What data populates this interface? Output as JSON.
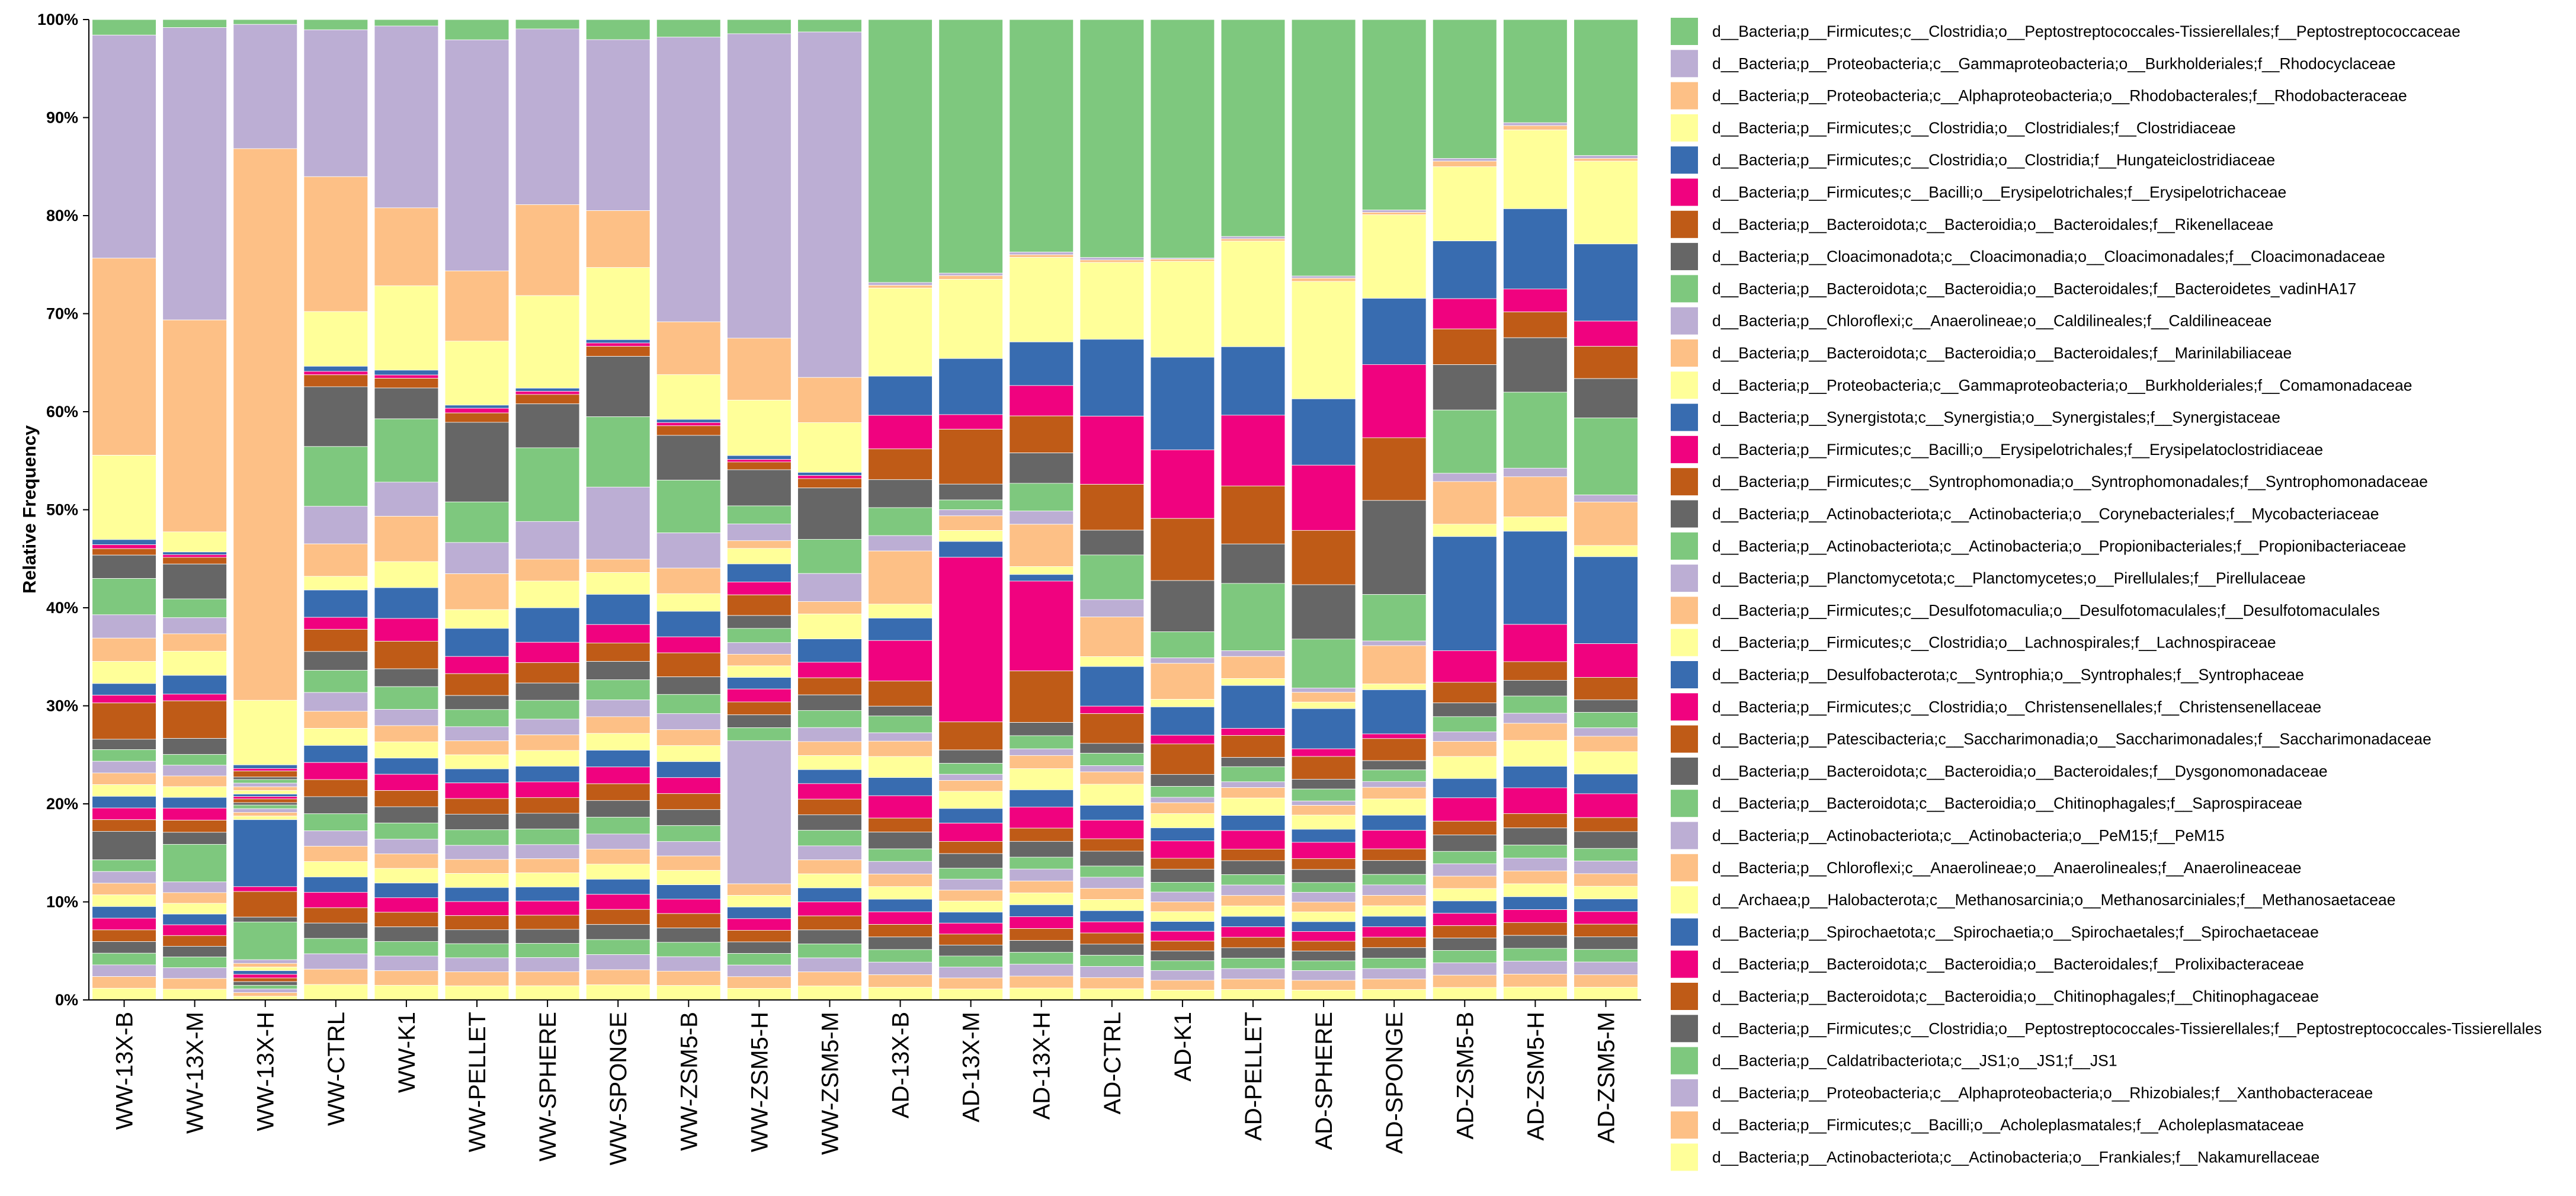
{
  "chart_data": {
    "type": "bar",
    "stacked": true,
    "normalized": true,
    "title": "",
    "xlabel": "",
    "ylabel": "Relative Frequency",
    "ylim": [
      0,
      100
    ],
    "yticks": [
      "0%",
      "10%",
      "20%",
      "30%",
      "40%",
      "50%",
      "60%",
      "70%",
      "80%",
      "90%",
      "100%"
    ],
    "legend_position": "right",
    "categories": [
      "WW-13X-B",
      "WW-13X-M",
      "WW-13X-H",
      "WW-CTRL",
      "WW-K1",
      "WW-PELLET",
      "WW-SPHERE",
      "WW-SPONGE",
      "WW-ZSM5-B",
      "WW-ZSM5-H",
      "WW-ZSM5-M",
      "AD-13X-B",
      "AD-13X-M",
      "AD-13X-H",
      "AD-CTRL",
      "AD-K1",
      "AD-PELLET",
      "AD-SPHERE",
      "AD-SPONGE",
      "AD-ZSM5-B",
      "AD-ZSM5-H",
      "AD-ZSM5-M"
    ],
    "series": [
      {
        "name": "d__Bacteria;p__Firmicutes;c__Clostridia;o__Peptostreptococcales-Tissierellales;f__Peptostreptococcaceae",
        "color": "#7ec87e",
        "values": [
          1.2,
          0.6,
          0.4,
          0.6,
          0.4,
          1.3,
          0.6,
          1.2,
          1.1,
          1.1,
          0.8,
          18.8,
          20.8,
          17.6,
          19.2,
          21.9,
          18.7,
          23.6,
          16.4,
          10.1,
          7.2,
          9.7
        ]
      },
      {
        "name": "d__Bacteria;p__Proteobacteria;c__Gammaproteobacteria;o__Burkholderiales;f__Rhodocyclaceae",
        "color": "#bcaed4",
        "values": [
          17.2,
          21.8,
          10.2,
          8.6,
          11.2,
          14.8,
          11.2,
          10.2,
          17.8,
          23.6,
          22.2,
          0.2,
          0.2,
          0.2,
          0.2,
          0.1,
          0.2,
          0.2,
          0.2,
          0.2,
          0.2,
          0.2
        ]
      },
      {
        "name": "d__Bacteria;p__Proteobacteria;c__Alphaproteobacteria;o__Rhodobacterales;f__Rhodobacteraceae",
        "color": "#fdc086",
        "values": [
          15.2,
          15.8,
          45.3,
          7.9,
          4.8,
          4.5,
          5.8,
          3.4,
          3.3,
          4.8,
          2.9,
          0.2,
          0.3,
          0.2,
          0.2,
          0.2,
          0.2,
          0.3,
          0.2,
          0.4,
          0.3,
          0.2
        ]
      },
      {
        "name": "d__Bacteria;p__Firmicutes;c__Clostridia;o__Clostridiales;f__Clostridiaceae",
        "color": "#ffff99",
        "values": [
          6.5,
          1.5,
          5.3,
          3.2,
          5.2,
          4.1,
          5.9,
          4.3,
          2.8,
          4.3,
          3.2,
          6.3,
          6.5,
          6.4,
          6.2,
          8.8,
          9.1,
          10.8,
          7.2,
          5.4,
          5.5,
          5.9
        ]
      },
      {
        "name": "d__Bacteria;p__Firmicutes;c__Clostridia;o__Clostridia;f__Hungateiclostridiaceae",
        "color": "#386cb0",
        "values": [
          0.4,
          0.2,
          0.3,
          0.3,
          0.3,
          0.2,
          0.2,
          0.2,
          0.2,
          0.3,
          0.2,
          2.8,
          4.6,
          3.3,
          6.2,
          8.5,
          5.9,
          6.1,
          5.7,
          4.2,
          5.6,
          5.5
        ]
      },
      {
        "name": "d__Bacteria;p__Firmicutes;c__Bacilli;o__Erysipelotrichales;f__Erysipelotrichaceae",
        "color": "#f0027f",
        "values": [
          0.3,
          0.2,
          0.2,
          0.2,
          0.2,
          0.3,
          0.2,
          0.2,
          0.2,
          0.2,
          0.2,
          2.4,
          1.2,
          2.3,
          5.5,
          6.3,
          6.1,
          6.0,
          6.3,
          2.2,
          1.6,
          1.8
        ]
      },
      {
        "name": "d__Bacteria;p__Bacteroidota;c__Bacteroidia;o__Bacteroidales;f__Rikenellaceae",
        "color": "#bf5b17",
        "values": [
          0.5,
          0.5,
          0.5,
          0.7,
          0.6,
          0.6,
          0.6,
          0.6,
          0.6,
          0.6,
          0.6,
          2.2,
          4.5,
          2.8,
          3.7,
          5.7,
          5.0,
          5.0,
          5.4,
          2.6,
          1.8,
          2.3
        ]
      },
      {
        "name": "d__Bacteria;p__Cloacimonadota;c__Cloacimonadia;o__Cloacimonadales;f__Cloacimonadaceae",
        "color": "#666666",
        "values": [
          1.8,
          2.6,
          0.2,
          3.5,
          1.9,
          5.1,
          2.8,
          3.6,
          2.8,
          2.8,
          3.3,
          2.0,
          1.3,
          2.3,
          2.0,
          4.7,
          3.4,
          5.0,
          8.1,
          3.3,
          3.8,
          2.8
        ]
      },
      {
        "name": "d__Bacteria;p__Bacteroidota;c__Bacteroidia;o__Bacteroidales;f__Bacteroidetes_vadinHA17",
        "color": "#7ec87e",
        "values": [
          2.8,
          1.4,
          0.3,
          3.5,
          3.9,
          2.6,
          4.7,
          4.2,
          3.3,
          1.4,
          2.2,
          2.0,
          0.8,
          2.1,
          3.6,
          2.4,
          5.8,
          4.5,
          4.0,
          4.6,
          5.3,
          5.5
        ]
      },
      {
        "name": "d__Bacteria;p__Chloroflexi;c__Anaerolineae;o__Caldilineales;f__Caldilineaceae",
        "color": "#bcaed4",
        "values": [
          1.8,
          1.2,
          0.3,
          2.2,
          2.1,
          2.0,
          2.4,
          4.3,
          2.2,
          1.3,
          1.8,
          1.1,
          0.5,
          1.0,
          1.4,
          0.5,
          0.5,
          0.4,
          0.4,
          0.6,
          0.6,
          0.5
        ]
      },
      {
        "name": "d__Bacteria;p__Bacteroidota;c__Bacteroidia;o__Bacteroidales;f__Marinilabiliaceae",
        "color": "#fdc086",
        "values": [
          1.8,
          1.3,
          0.3,
          1.9,
          2.8,
          2.3,
          1.4,
          0.8,
          1.6,
          0.6,
          0.8,
          3.8,
          1.2,
          3.2,
          3.2,
          3.3,
          1.9,
          0.9,
          3.3,
          3.1,
          2.8,
          3.1
        ]
      },
      {
        "name": "d__Bacteria;p__Proteobacteria;c__Gammaproteobacteria;o__Burkholderiales;f__Comamonadaceae",
        "color": "#ffff99",
        "values": [
          1.7,
          1.8,
          0.3,
          0.8,
          1.6,
          1.2,
          1.7,
          1.3,
          1.1,
          1.2,
          1.6,
          1.0,
          0.9,
          0.6,
          0.8,
          0.7,
          0.6,
          0.6,
          0.5,
          0.9,
          1.0,
          0.8
        ]
      },
      {
        "name": "d__Bacteria;p__Synergistota;c__Synergistia;o__Synergistales;f__Synergistaceae",
        "color": "#386cb0",
        "values": [
          0.9,
          1.4,
          0.2,
          1.6,
          1.9,
          1.8,
          2.2,
          1.8,
          1.6,
          1.4,
          1.5,
          1.6,
          1.3,
          0.5,
          3.2,
          2.6,
          3.7,
          3.7,
          3.8,
          8.3,
          6.5,
          6.2
        ]
      },
      {
        "name": "d__Bacteria;p__Firmicutes;c__Bacilli;o__Erysipelotrichales;f__Erysipelatoclostridiaceae",
        "color": "#f0027f",
        "values": [
          0.6,
          0.5,
          0.2,
          0.7,
          1.4,
          1.1,
          1.3,
          1.1,
          1.0,
          1.0,
          1.0,
          2.9,
          13.5,
          6.8,
          0.6,
          0.8,
          0.6,
          0.7,
          0.4,
          2.3,
          2.6,
          2.4
        ]
      },
      {
        "name": "d__Bacteria;p__Firmicutes;c__Syntrophomonadia;o__Syntrophomonadales;f__Syntrophomonadaceae",
        "color": "#bf5b17",
        "values": [
          2.8,
          2.8,
          0.3,
          1.3,
          1.7,
          1.4,
          1.3,
          1.1,
          1.5,
          1.6,
          1.1,
          1.8,
          2.3,
          3.9,
          2.4,
          2.8,
          1.9,
          2.1,
          1.9,
          1.5,
          1.3,
          1.6
        ]
      },
      {
        "name": "d__Bacteria;p__Actinobacteriota;c__Actinobacteria;o__Corynebacteriales;f__Mycobacteriaceae",
        "color": "#666666",
        "values": [
          0.8,
          1.2,
          0.2,
          1.1,
          1.1,
          0.9,
          1.1,
          1.1,
          1.1,
          1.0,
          1.0,
          0.7,
          1.1,
          1.0,
          0.8,
          1.1,
          0.8,
          0.9,
          0.8,
          1.0,
          1.1,
          0.9
        ]
      },
      {
        "name": "d__Bacteria;p__Actinobacteriota;c__Actinobacteria;o__Propionibacteriales;f__Propionibacteriaceae",
        "color": "#7ec87e",
        "values": [
          0.9,
          0.8,
          0.3,
          1.3,
          1.4,
          1.1,
          1.2,
          1.2,
          1.2,
          1.1,
          1.1,
          1.2,
          0.9,
          1.0,
          1.0,
          1.0,
          1.3,
          1.1,
          1.0,
          1.1,
          1.2,
          1.1
        ]
      },
      {
        "name": "d__Bacteria;p__Planctomycetota;c__Planctomycetes;o__Pirellulales;f__Pirellulaceae",
        "color": "#bcaed4",
        "values": [
          0.9,
          0.8,
          0.3,
          1.1,
          1.0,
          0.9,
          1.0,
          1.0,
          1.0,
          0.9,
          0.9,
          0.6,
          0.5,
          0.5,
          0.5,
          0.5,
          0.5,
          0.4,
          0.5,
          0.7,
          0.7,
          0.6
        ]
      },
      {
        "name": "d__Bacteria;p__Firmicutes;c__Desulfotomaculia;o__Desulfotomaculales;f__Desulfotomaculales",
        "color": "#fdc086",
        "values": [
          0.9,
          0.8,
          0.3,
          1.0,
          1.0,
          0.9,
          1.0,
          1.0,
          1.0,
          0.9,
          0.9,
          1.1,
          0.9,
          1.0,
          1.0,
          1.0,
          0.9,
          0.9,
          1.0,
          1.1,
          1.2,
          1.1
        ]
      },
      {
        "name": "d__Bacteria;p__Firmicutes;c__Clostridia;o__Lachnospirales;f__Lachnospiraceae",
        "color": "#ffff99",
        "values": [
          0.9,
          0.8,
          0.3,
          1.0,
          1.0,
          0.9,
          1.0,
          1.0,
          1.0,
          0.9,
          0.9,
          1.5,
          1.4,
          1.6,
          1.7,
          1.3,
          1.5,
          1.3,
          1.4,
          1.6,
          1.8,
          1.6
        ]
      },
      {
        "name": "d__Bacteria;p__Desulfobacterota;c__Syntrophia;o__Syntrophales;f__Syntrophaceae",
        "color": "#386cb0",
        "values": [
          0.9,
          0.8,
          5.5,
          1.0,
          1.0,
          0.9,
          1.0,
          1.0,
          1.0,
          0.9,
          0.9,
          1.3,
          1.2,
          1.3,
          1.2,
          1.2,
          1.3,
          1.2,
          1.3,
          1.4,
          1.5,
          1.4
        ]
      },
      {
        "name": "d__Bacteria;p__Firmicutes;c__Clostridia;o__Christensenellales;f__Christensenellaceae",
        "color": "#f0027f",
        "values": [
          0.9,
          0.9,
          0.4,
          1.0,
          1.0,
          1.0,
          1.0,
          1.0,
          1.0,
          1.0,
          1.0,
          1.6,
          1.5,
          1.6,
          1.5,
          1.6,
          1.6,
          1.5,
          1.6,
          1.7,
          1.8,
          1.7
        ]
      },
      {
        "name": "d__Bacteria;p__Patescibacteria;c__Saccharimonadia;o__Saccharimonadales;f__Saccharimonadaceae",
        "color": "#bf5b17",
        "values": [
          0.9,
          0.9,
          2.1,
          1.0,
          1.0,
          1.0,
          1.0,
          1.0,
          1.0,
          1.0,
          1.0,
          1.0,
          1.0,
          1.0,
          1.0,
          1.0,
          1.0,
          1.0,
          1.0,
          1.0,
          1.0,
          1.0
        ]
      },
      {
        "name": "d__Bacteria;p__Bacteroidota;c__Bacteroidia;o__Bacteroidales;f__Dysgonomonadaceae",
        "color": "#666666",
        "values": [
          2.2,
          0.9,
          0.4,
          1.0,
          1.0,
          1.0,
          1.0,
          1.0,
          1.0,
          1.0,
          1.0,
          1.2,
          1.2,
          1.2,
          1.2,
          1.2,
          1.2,
          1.2,
          1.2,
          1.2,
          1.2,
          1.2
        ]
      },
      {
        "name": "d__Bacteria;p__Bacteroidota;c__Bacteroidia;o__Chitinophagales;f__Saprospiraceae",
        "color": "#7ec87e",
        "values": [
          0.9,
          2.8,
          3.1,
          1.0,
          1.0,
          1.0,
          1.0,
          1.0,
          1.0,
          1.0,
          1.0,
          0.9,
          0.9,
          0.9,
          0.9,
          0.9,
          0.9,
          0.9,
          0.9,
          0.9,
          0.9,
          0.9
        ]
      },
      {
        "name": "d__Bacteria;p__Actinobacteriota;c__Actinobacteria;o__PeM15;f__PeM15",
        "color": "#bcaed4",
        "values": [
          0.9,
          0.8,
          0.3,
          0.9,
          0.9,
          0.9,
          0.9,
          0.9,
          0.9,
          11.1,
          0.9,
          0.9,
          0.9,
          0.9,
          0.9,
          0.9,
          0.9,
          0.9,
          0.9,
          0.9,
          0.9,
          0.9
        ]
      },
      {
        "name": "d__Bacteria;p__Chloroflexi;c__Anaerolineae;o__Anaerolineales;f__Anaerolineaceae",
        "color": "#fdc086",
        "values": [
          0.9,
          0.8,
          0.3,
          0.9,
          0.9,
          0.9,
          0.9,
          0.9,
          0.9,
          0.9,
          0.9,
          0.9,
          0.9,
          0.9,
          0.9,
          0.9,
          0.9,
          0.9,
          0.9,
          0.9,
          0.9,
          0.9
        ]
      },
      {
        "name": "d__Archaea;p__Halobacterota;c__Methanosarcinia;o__Methanosarciniales;f__Methanosaetaceae",
        "color": "#ffff99",
        "values": [
          0.9,
          0.8,
          0.3,
          0.9,
          0.9,
          0.9,
          0.9,
          0.9,
          0.9,
          0.9,
          0.9,
          0.9,
          0.9,
          0.9,
          0.9,
          0.9,
          0.9,
          0.9,
          0.9,
          0.9,
          0.9,
          0.9
        ]
      },
      {
        "name": "d__Bacteria;p__Spirochaetota;c__Spirochaetia;o__Spirochaetales;f__Spirochaetaceae",
        "color": "#386cb0",
        "values": [
          0.9,
          0.8,
          0.3,
          0.9,
          0.9,
          0.9,
          0.9,
          0.9,
          0.9,
          0.9,
          0.9,
          0.9,
          0.9,
          0.9,
          0.9,
          0.9,
          0.9,
          0.9,
          0.9,
          0.9,
          0.9,
          0.9
        ]
      },
      {
        "name": "d__Bacteria;p__Bacteroidota;c__Bacteroidia;o__Bacteroidales;f__Prolixibacteraceae",
        "color": "#f0027f",
        "values": [
          0.9,
          0.8,
          0.3,
          0.9,
          0.9,
          0.9,
          0.9,
          0.9,
          0.9,
          0.9,
          0.9,
          0.9,
          0.9,
          0.9,
          0.9,
          0.9,
          0.9,
          0.9,
          0.9,
          0.9,
          0.9,
          0.9
        ]
      },
      {
        "name": "d__Bacteria;p__Bacteroidota;c__Bacteroidia;o__Chitinophagales;f__Chitinophagaceae",
        "color": "#bf5b17",
        "values": [
          0.9,
          0.8,
          0.3,
          0.9,
          0.9,
          0.9,
          0.9,
          0.9,
          0.9,
          0.9,
          0.9,
          0.9,
          0.9,
          0.9,
          0.9,
          0.9,
          0.9,
          0.9,
          0.9,
          0.9,
          0.9,
          0.9
        ]
      },
      {
        "name": "d__Bacteria;p__Firmicutes;c__Clostridia;o__Peptostreptococcales-Tissierellales;f__Peptostreptococcales-Tissierellales",
        "color": "#666666",
        "values": [
          0.9,
          0.8,
          0.3,
          0.9,
          0.9,
          0.9,
          0.9,
          0.9,
          0.9,
          0.9,
          0.9,
          0.9,
          0.9,
          0.9,
          0.9,
          0.9,
          0.9,
          0.9,
          0.9,
          0.9,
          0.9,
          0.9
        ]
      },
      {
        "name": "d__Bacteria;p__Caldatribacteriota;c__JS1;o__JS1;f__JS1",
        "color": "#7ec87e",
        "values": [
          0.9,
          0.8,
          0.3,
          0.9,
          0.9,
          0.9,
          0.9,
          0.9,
          0.9,
          0.9,
          0.9,
          0.9,
          0.9,
          0.9,
          0.9,
          0.9,
          0.9,
          0.9,
          0.9,
          0.9,
          0.9,
          0.9
        ]
      },
      {
        "name": "d__Bacteria;p__Proteobacteria;c__Alphaproteobacteria;o__Rhizobiales;f__Xanthobacteraceae",
        "color": "#bcaed4",
        "values": [
          0.9,
          0.8,
          0.3,
          0.9,
          0.9,
          0.9,
          0.9,
          0.9,
          0.9,
          0.9,
          0.9,
          0.9,
          0.9,
          0.9,
          0.9,
          0.9,
          0.9,
          0.9,
          0.9,
          0.9,
          0.9,
          0.9
        ]
      },
      {
        "name": "d__Bacteria;p__Firmicutes;c__Bacilli;o__Acholeplasmatales;f__Acholeplasmataceae",
        "color": "#fdc086",
        "values": [
          0.9,
          0.8,
          0.3,
          0.9,
          0.9,
          0.9,
          0.9,
          0.9,
          0.9,
          0.9,
          0.9,
          0.9,
          0.9,
          0.9,
          0.9,
          0.9,
          0.9,
          0.9,
          0.9,
          0.9,
          0.9,
          0.9
        ]
      },
      {
        "name": "d__Bacteria;p__Actinobacteriota;c__Actinobacteria;o__Frankiales;f__Nakamurellaceae",
        "color": "#ffff99",
        "values": [
          0.9,
          0.8,
          0.3,
          0.9,
          0.9,
          0.9,
          0.9,
          0.9,
          0.9,
          0.9,
          0.9,
          0.9,
          0.9,
          0.9,
          0.9,
          0.9,
          0.9,
          0.9,
          0.9,
          0.9,
          0.9,
          0.9
        ]
      }
    ]
  }
}
